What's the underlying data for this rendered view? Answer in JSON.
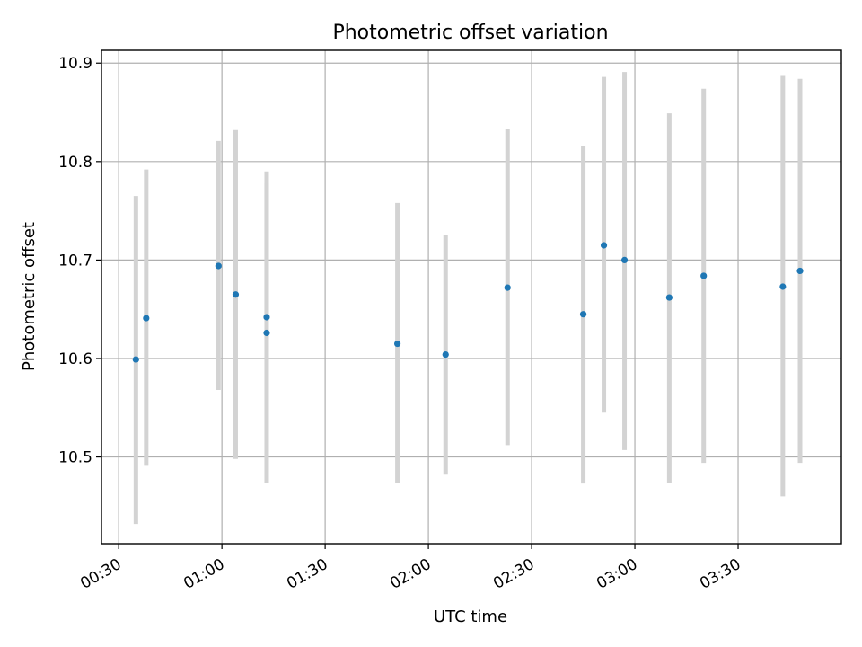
{
  "chart_data": {
    "type": "scatter",
    "title": "Photometric offset variation",
    "xlabel": "UTC time",
    "ylabel": "Photometric offset",
    "x_ticks": [
      "00:30",
      "01:00",
      "01:30",
      "02:00",
      "02:30",
      "03:00",
      "03:30"
    ],
    "y_ticks": [
      "10.5",
      "10.6",
      "10.7",
      "10.8",
      "10.9"
    ],
    "xlim": [
      "00:25",
      "04:00"
    ],
    "ylim": [
      10.412,
      10.913
    ],
    "grid": true,
    "colors": {
      "point": "#1f77b4",
      "errorbar": "#d3d3d3",
      "grid": "#b0b0b0"
    },
    "points": [
      {
        "x": "00:35",
        "y": 10.599,
        "ylow": 10.432,
        "yhigh": 10.765
      },
      {
        "x": "00:38",
        "y": 10.641,
        "ylow": 10.491,
        "yhigh": 10.792
      },
      {
        "x": "00:59",
        "y": 10.694,
        "ylow": 10.568,
        "yhigh": 10.821
      },
      {
        "x": "01:04",
        "y": 10.665,
        "ylow": 10.498,
        "yhigh": 10.832
      },
      {
        "x": "01:13",
        "y": 10.642,
        "ylow": 10.642,
        "yhigh": 10.79
      },
      {
        "x": "01:13",
        "y": 10.626,
        "ylow": 10.474,
        "yhigh": 10.778
      },
      {
        "x": "01:51",
        "y": 10.615,
        "ylow": 10.474,
        "yhigh": 10.758
      },
      {
        "x": "02:05",
        "y": 10.604,
        "ylow": 10.482,
        "yhigh": 10.725
      },
      {
        "x": "02:23",
        "y": 10.672,
        "ylow": 10.512,
        "yhigh": 10.833
      },
      {
        "x": "02:45",
        "y": 10.645,
        "ylow": 10.473,
        "yhigh": 10.816
      },
      {
        "x": "02:51",
        "y": 10.715,
        "ylow": 10.545,
        "yhigh": 10.886
      },
      {
        "x": "02:57",
        "y": 10.7,
        "ylow": 10.507,
        "yhigh": 10.891
      },
      {
        "x": "03:10",
        "y": 10.662,
        "ylow": 10.474,
        "yhigh": 10.849
      },
      {
        "x": "03:20",
        "y": 10.684,
        "ylow": 10.494,
        "yhigh": 10.874
      },
      {
        "x": "03:43",
        "y": 10.673,
        "ylow": 10.46,
        "yhigh": 10.887
      },
      {
        "x": "03:48",
        "y": 10.689,
        "ylow": 10.494,
        "yhigh": 10.884
      }
    ]
  }
}
